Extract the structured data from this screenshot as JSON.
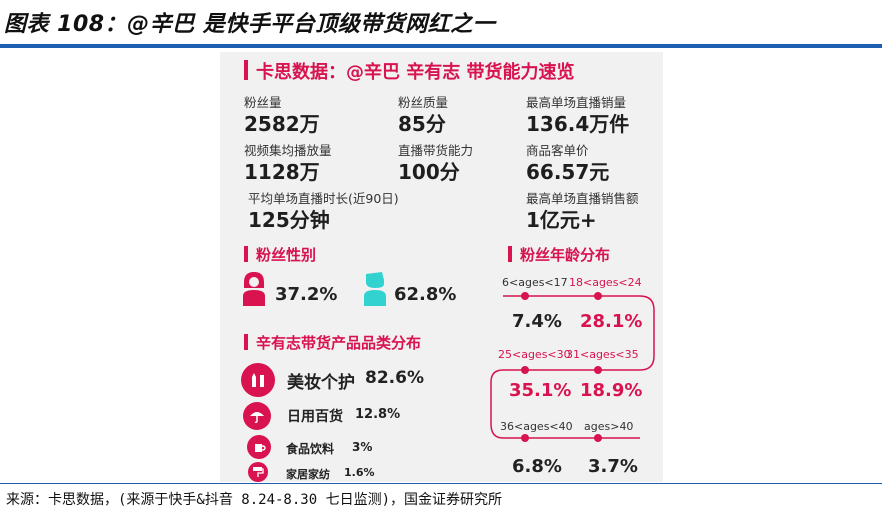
{
  "header": {
    "title": "图表 108：@辛巴 是快手平台顶级带货网红之一"
  },
  "card": {
    "title": "卡思数据：@辛巴 辛有志 带货能力速览",
    "stats": [
      {
        "label": "粉丝量",
        "value": "2582万"
      },
      {
        "label": "粉丝质量",
        "value": "85分"
      },
      {
        "label": "最高单场直播销量",
        "value": "136.4万件"
      },
      {
        "label": "视频集均播放量",
        "value": "1128万"
      },
      {
        "label": "直播带货能力",
        "value": "100分"
      },
      {
        "label": "商品客单价",
        "value": "66.57元"
      },
      {
        "label": "平均单场直播时长(近90日)",
        "value": "125分钟"
      },
      {
        "label": "最高单场直播销售额",
        "value": "1亿元+"
      }
    ],
    "gender": {
      "title": "粉丝性别",
      "female": "37.2%",
      "male": "62.8%",
      "female_color": "#d8134f",
      "male_color": "#31d2cf"
    },
    "categories": {
      "title": "辛有志带货产品品类分布",
      "items": [
        {
          "name": "美妆个护",
          "pct": "82.6%",
          "icon": "lipstick-icon"
        },
        {
          "name": "日用百货",
          "pct": "12.8%",
          "icon": "umbrella-icon"
        },
        {
          "name": "食品饮料",
          "pct": "3%",
          "icon": "cup-icon"
        },
        {
          "name": "家居家纺",
          "pct": "1.6%",
          "icon": "roller-icon"
        }
      ]
    },
    "age": {
      "title": "粉丝年龄分布",
      "groups": [
        {
          "label": "6<ages<17",
          "value": "7.4%",
          "highlight": false
        },
        {
          "label": "18<ages<24",
          "value": "28.1%",
          "highlight": true
        },
        {
          "label": "25<ages<30",
          "value": "35.1%",
          "highlight": true
        },
        {
          "label": "31<ages<35",
          "value": "18.9%",
          "highlight": true
        },
        {
          "label": "36<ages<40",
          "value": "6.8%",
          "highlight": false
        },
        {
          "label": "ages>40",
          "value": "3.7%",
          "highlight": false
        }
      ]
    }
  },
  "source": "来源：卡思数据，(来源于快手&抖音 8.24-8.30 七日监测)，国金证券研究所",
  "colors": {
    "accent": "#d8134f",
    "teal": "#31d2cf",
    "header_rule": "#1f5fb0",
    "card_bg": "#f1f1f1"
  }
}
